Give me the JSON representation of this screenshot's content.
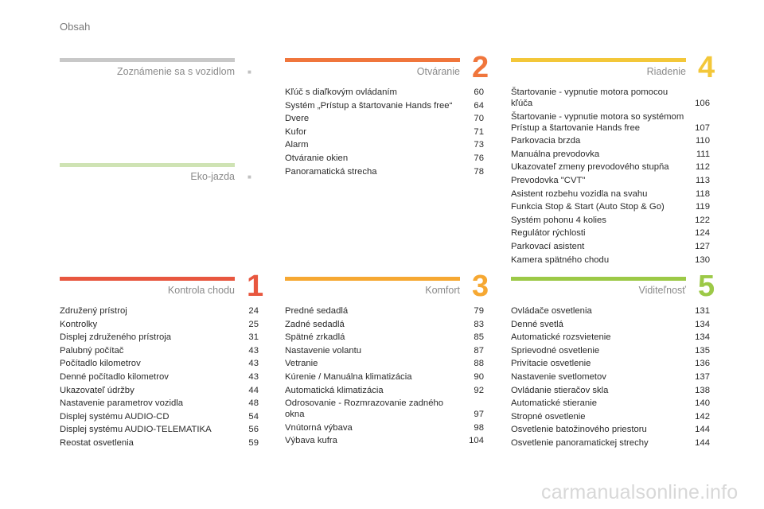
{
  "header": {
    "title": "Obsah"
  },
  "colors": {
    "gray": "#c8c8c8",
    "lightgreen": "#cfe3b4",
    "red": "#e8573f",
    "orange": "#f0763c",
    "amber": "#f6a832",
    "yellow": "#f3c739",
    "green": "#9cc947"
  },
  "sections": {
    "intro": {
      "title": "Zoznámenie sa s vozidlom",
      "number": "",
      "marker": "■",
      "entries": []
    },
    "eco": {
      "title": "Eko-jazda",
      "number": "",
      "marker": "■",
      "entries": []
    },
    "s1": {
      "title": "Kontrola chodu",
      "number": "1",
      "entries": [
        {
          "label": "Združený prístroj",
          "page": "24"
        },
        {
          "label": "Kontrolky",
          "page": "25"
        },
        {
          "label": "Displej združeného prístroja",
          "page": "31"
        },
        {
          "label": "Palubný počítač",
          "page": "43"
        },
        {
          "label": "Počítadlo kilometrov",
          "page": "43"
        },
        {
          "label": "Denné počítadlo kilometrov",
          "page": "43"
        },
        {
          "label": "Ukazovateľ údržby",
          "page": "44"
        },
        {
          "label": "Nastavenie parametrov vozidla",
          "page": "48"
        },
        {
          "label": "Displej systému AUDIO-CD",
          "page": "54"
        },
        {
          "label": "Displej systému AUDIO-TELEMATIKA",
          "page": "56"
        },
        {
          "label": "Reostat osvetlenia",
          "page": "59"
        }
      ]
    },
    "s2": {
      "title": "Otváranie",
      "number": "2",
      "entries": [
        {
          "label": "Kľúč s diaľkovým ovládaním",
          "page": "60"
        },
        {
          "label": "Systém „Prístup a štartovanie Hands free“",
          "page": "64"
        },
        {
          "label": "Dvere",
          "page": "70"
        },
        {
          "label": "Kufor",
          "page": "71"
        },
        {
          "label": "Alarm",
          "page": "73"
        },
        {
          "label": "Otváranie okien",
          "page": "76"
        },
        {
          "label": "Panoramatická strecha",
          "page": "78"
        }
      ]
    },
    "s3": {
      "title": "Komfort",
      "number": "3",
      "entries": [
        {
          "label": "Predné sedadlá",
          "page": "79"
        },
        {
          "label": "Zadné sedadlá",
          "page": "83"
        },
        {
          "label": "Spätné zrkadlá",
          "page": "85"
        },
        {
          "label": "Nastavenie volantu",
          "page": "87"
        },
        {
          "label": "Vetranie",
          "page": "88"
        },
        {
          "label": "Kúrenie / Manuálna klimatizácia",
          "page": "90"
        },
        {
          "label": "Automatická klimatizácia",
          "page": "92"
        },
        {
          "label": "Odrosovanie - Rozmrazovanie zadného okna",
          "page": "97"
        },
        {
          "label": "Vnútorná výbava",
          "page": "98"
        },
        {
          "label": "Výbava kufra",
          "page": "104"
        }
      ]
    },
    "s4": {
      "title": "Riadenie",
      "number": "4",
      "entries": [
        {
          "label": "Štartovanie - vypnutie motora pomocou kľúča",
          "page": "106"
        },
        {
          "label": "Štartovanie - vypnutie motora so systémom Prístup a štartovanie Hands free",
          "page": "107"
        },
        {
          "label": "Parkovacia brzda",
          "page": "110"
        },
        {
          "label": "Manuálna prevodovka",
          "page": "111"
        },
        {
          "label": "Ukazovateľ zmeny prevodového stupňa",
          "page": "112"
        },
        {
          "label": "Prevodovka \"CVT\"",
          "page": "113"
        },
        {
          "label": "Asistent rozbehu vozidla na svahu",
          "page": "118"
        },
        {
          "label": "Funkcia Stop & Start (Auto Stop & Go)",
          "page": "119"
        },
        {
          "label": "Systém pohonu 4 kolies",
          "page": "122"
        },
        {
          "label": "Regulátor rýchlosti",
          "page": "124"
        },
        {
          "label": "Parkovací asistent",
          "page": "127"
        },
        {
          "label": "Kamera spätného chodu",
          "page": "130"
        }
      ]
    },
    "s5": {
      "title": "Viditeľnosť",
      "number": "5",
      "entries": [
        {
          "label": "Ovládače osvetlenia",
          "page": "131"
        },
        {
          "label": "Denné svetlá",
          "page": "134"
        },
        {
          "label": "Automatické rozsvietenie",
          "page": "134"
        },
        {
          "label": "Sprievodné osvetlenie",
          "page": "135"
        },
        {
          "label": "Privítacie osvetlenie",
          "page": "136"
        },
        {
          "label": "Nastavenie svetlometov",
          "page": "137"
        },
        {
          "label": "Ovládanie stieračov skla",
          "page": "138"
        },
        {
          "label": "Automatické stieranie",
          "page": "140"
        },
        {
          "label": "Stropné osvetlenie",
          "page": "142"
        },
        {
          "label": "Osvetlenie batožinového priestoru",
          "page": "144"
        },
        {
          "label": "Osvetlenie panoramatickej strechy",
          "page": "144"
        }
      ]
    }
  },
  "watermark": "carmanualsonline.info"
}
